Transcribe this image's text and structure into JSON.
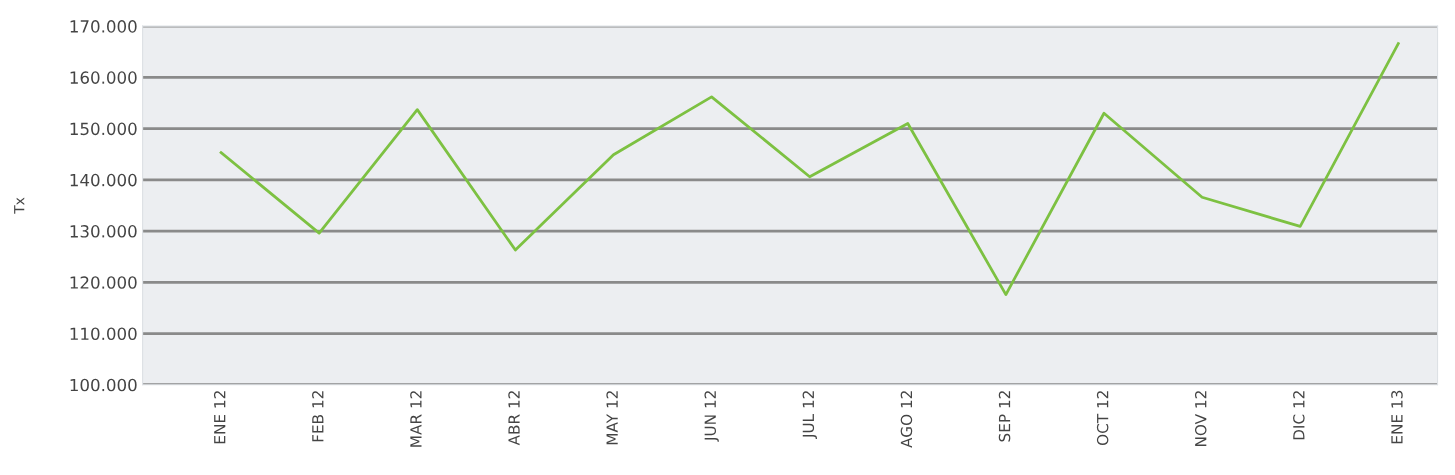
{
  "chart_data": {
    "type": "line",
    "ylabel": "Tx",
    "categories": [
      "ENE 12",
      "FEB 12",
      "MAR 12",
      "ABR 12",
      "MAY 12",
      "JUN 12",
      "JUL 12",
      "AGO 12",
      "SEP 12",
      "OCT 12",
      "NOV 12",
      "DIC 12",
      "ENE 13"
    ],
    "series": [
      {
        "color": "#7dc142",
        "values": [
          145300,
          129600,
          153700,
          126300,
          144900,
          156200,
          140600,
          151000,
          117600,
          153000,
          136600,
          130900,
          166600
        ]
      }
    ],
    "ylim": [
      100000,
      170000
    ],
    "yticks": [
      {
        "value": 100000,
        "label": "100.000"
      },
      {
        "value": 110000,
        "label": "110.000"
      },
      {
        "value": 120000,
        "label": "120.000"
      },
      {
        "value": 130000,
        "label": "130.000"
      },
      {
        "value": 140000,
        "label": "140.000"
      },
      {
        "value": 150000,
        "label": "150.000"
      },
      {
        "value": 160000,
        "label": "160.000"
      },
      {
        "value": 170000,
        "label": "170.000"
      }
    ],
    "grid": "y",
    "marker": "none",
    "line_style": "solid"
  }
}
